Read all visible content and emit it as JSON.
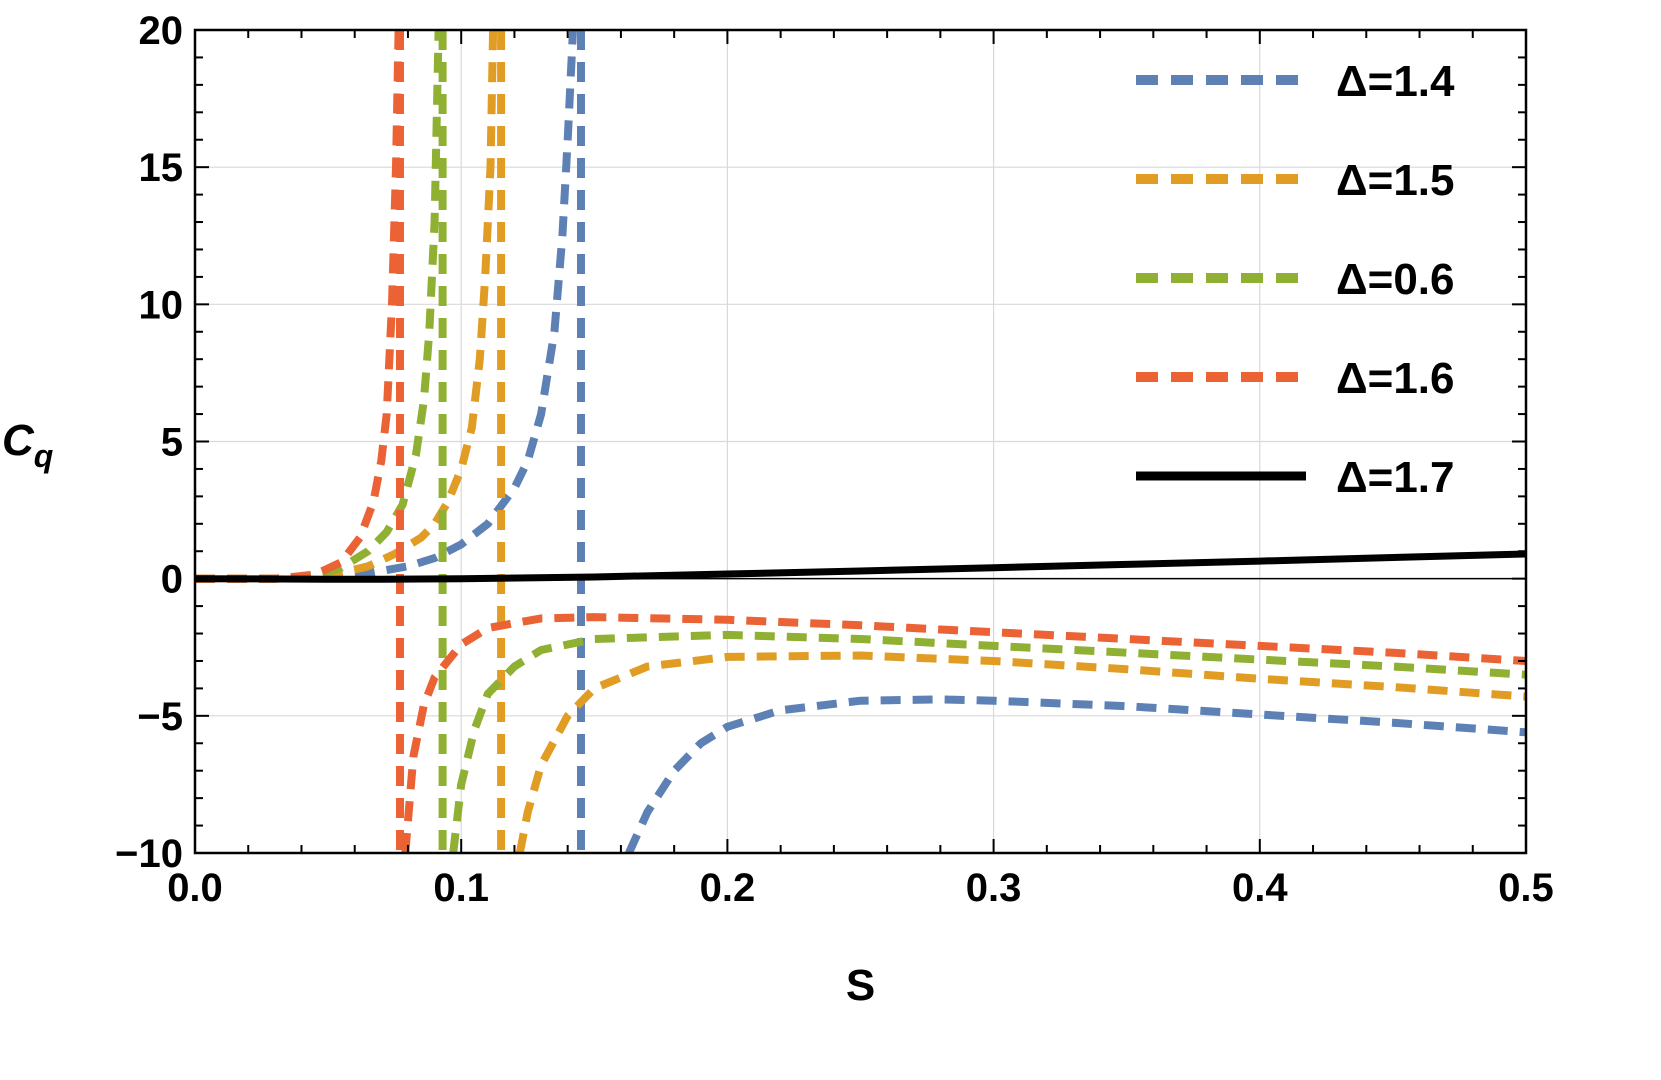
{
  "chart_data": {
    "type": "line",
    "xlabel": "S",
    "ylabel": "C",
    "ylabel_sub": "q",
    "xlim": [
      0,
      0.5
    ],
    "ylim": [
      -10,
      20
    ],
    "x_ticks": [
      0.0,
      0.1,
      0.2,
      0.3,
      0.4,
      0.5
    ],
    "x_tick_labels": [
      "0.0",
      "0.1",
      "0.2",
      "0.3",
      "0.4",
      "0.5"
    ],
    "y_ticks": [
      -10,
      -5,
      0,
      5,
      10,
      15,
      20
    ],
    "y_tick_labels": [
      "−10",
      "−5",
      "0",
      "5",
      "10",
      "15",
      "20"
    ],
    "grid": true,
    "legend_position": "top-right",
    "series": [
      {
        "name": "Δ=1.4",
        "color": "#5E81B5",
        "style": "dashed",
        "branches": [
          [
            [
              0.0,
              0.0
            ],
            [
              0.03,
              0.0
            ],
            [
              0.05,
              0.05
            ],
            [
              0.065,
              0.2
            ],
            [
              0.08,
              0.45
            ],
            [
              0.09,
              0.75
            ],
            [
              0.1,
              1.25
            ],
            [
              0.11,
              2.0
            ],
            [
              0.12,
              3.3
            ],
            [
              0.125,
              4.3
            ],
            [
              0.13,
              6.0
            ],
            [
              0.135,
              9.0
            ],
            [
              0.138,
              12.5
            ],
            [
              0.14,
              16.0
            ],
            [
              0.142,
              20.0
            ]
          ],
          [
            [
              0.145,
              20.0
            ],
            [
              0.145,
              -10.0
            ]
          ],
          [
            [
              0.163,
              -10.0
            ],
            [
              0.17,
              -8.5
            ],
            [
              0.18,
              -7.0
            ],
            [
              0.19,
              -6.0
            ],
            [
              0.2,
              -5.4
            ],
            [
              0.22,
              -4.8
            ],
            [
              0.25,
              -4.45
            ],
            [
              0.28,
              -4.4
            ],
            [
              0.3,
              -4.45
            ],
            [
              0.35,
              -4.65
            ],
            [
              0.4,
              -4.95
            ],
            [
              0.45,
              -5.25
            ],
            [
              0.5,
              -5.6
            ]
          ]
        ]
      },
      {
        "name": "Δ=1.5",
        "color": "#E19C24",
        "style": "dashed",
        "branches": [
          [
            [
              0.0,
              0.0
            ],
            [
              0.03,
              0.0
            ],
            [
              0.05,
              0.1
            ],
            [
              0.065,
              0.45
            ],
            [
              0.075,
              0.9
            ],
            [
              0.085,
              1.5
            ],
            [
              0.09,
              2.0
            ],
            [
              0.095,
              2.8
            ],
            [
              0.1,
              4.0
            ],
            [
              0.104,
              5.5
            ],
            [
              0.107,
              8.0
            ],
            [
              0.109,
              11.0
            ],
            [
              0.111,
              15.0
            ],
            [
              0.112,
              20.0
            ]
          ],
          [
            [
              0.115,
              20.0
            ],
            [
              0.115,
              -10.0
            ]
          ],
          [
            [
              0.122,
              -10.0
            ],
            [
              0.125,
              -8.5
            ],
            [
              0.13,
              -6.8
            ],
            [
              0.14,
              -5.0
            ],
            [
              0.15,
              -4.0
            ],
            [
              0.17,
              -3.2
            ],
            [
              0.2,
              -2.85
            ],
            [
              0.25,
              -2.8
            ],
            [
              0.3,
              -3.0
            ],
            [
              0.35,
              -3.3
            ],
            [
              0.4,
              -3.65
            ],
            [
              0.45,
              -3.95
            ],
            [
              0.5,
              -4.3
            ]
          ]
        ]
      },
      {
        "name": "Δ=0.6",
        "color": "#8FB032",
        "style": "dashed",
        "branches": [
          [
            [
              0.0,
              0.0
            ],
            [
              0.03,
              0.0
            ],
            [
              0.045,
              0.1
            ],
            [
              0.055,
              0.4
            ],
            [
              0.065,
              1.0
            ],
            [
              0.072,
              1.7
            ],
            [
              0.078,
              2.7
            ],
            [
              0.083,
              4.5
            ],
            [
              0.086,
              6.5
            ],
            [
              0.088,
              9.0
            ],
            [
              0.09,
              13.0
            ],
            [
              0.0915,
              20.0
            ]
          ],
          [
            [
              0.093,
              20.0
            ],
            [
              0.093,
              -10.0
            ]
          ],
          [
            [
              0.097,
              -10.0
            ],
            [
              0.1,
              -7.5
            ],
            [
              0.105,
              -5.5
            ],
            [
              0.11,
              -4.2
            ],
            [
              0.12,
              -3.2
            ],
            [
              0.13,
              -2.6
            ],
            [
              0.15,
              -2.2
            ],
            [
              0.2,
              -2.05
            ],
            [
              0.25,
              -2.2
            ],
            [
              0.3,
              -2.45
            ],
            [
              0.35,
              -2.7
            ],
            [
              0.4,
              -2.95
            ],
            [
              0.45,
              -3.2
            ],
            [
              0.5,
              -3.5
            ]
          ]
        ]
      },
      {
        "name": "Δ=1.6",
        "color": "#EB6235",
        "style": "dashed",
        "branches": [
          [
            [
              0.0,
              0.0
            ],
            [
              0.03,
              0.0
            ],
            [
              0.045,
              0.15
            ],
            [
              0.055,
              0.6
            ],
            [
              0.062,
              1.5
            ],
            [
              0.067,
              2.8
            ],
            [
              0.07,
              4.3
            ],
            [
              0.072,
              6.0
            ],
            [
              0.074,
              10.0
            ],
            [
              0.0755,
              15.0
            ],
            [
              0.0765,
              20.0
            ]
          ],
          [
            [
              0.077,
              20.0
            ],
            [
              0.077,
              -10.0
            ]
          ],
          [
            [
              0.079,
              -10.0
            ],
            [
              0.082,
              -6.5
            ],
            [
              0.086,
              -4.6
            ],
            [
              0.09,
              -3.6
            ],
            [
              0.1,
              -2.4
            ],
            [
              0.11,
              -1.8
            ],
            [
              0.13,
              -1.45
            ],
            [
              0.15,
              -1.4
            ],
            [
              0.2,
              -1.5
            ],
            [
              0.25,
              -1.7
            ],
            [
              0.3,
              -1.95
            ],
            [
              0.35,
              -2.2
            ],
            [
              0.4,
              -2.45
            ],
            [
              0.45,
              -2.7
            ],
            [
              0.5,
              -3.0
            ]
          ]
        ]
      },
      {
        "name": "Δ=1.7",
        "color": "#000000",
        "style": "solid",
        "branches": [
          [
            [
              0.0,
              0.0
            ],
            [
              0.05,
              -0.02
            ],
            [
              0.07,
              -0.02
            ],
            [
              0.1,
              0.0
            ],
            [
              0.15,
              0.06
            ],
            [
              0.2,
              0.17
            ],
            [
              0.25,
              0.28
            ],
            [
              0.3,
              0.4
            ],
            [
              0.35,
              0.52
            ],
            [
              0.4,
              0.64
            ],
            [
              0.45,
              0.77
            ],
            [
              0.5,
              0.9
            ]
          ]
        ]
      }
    ]
  }
}
